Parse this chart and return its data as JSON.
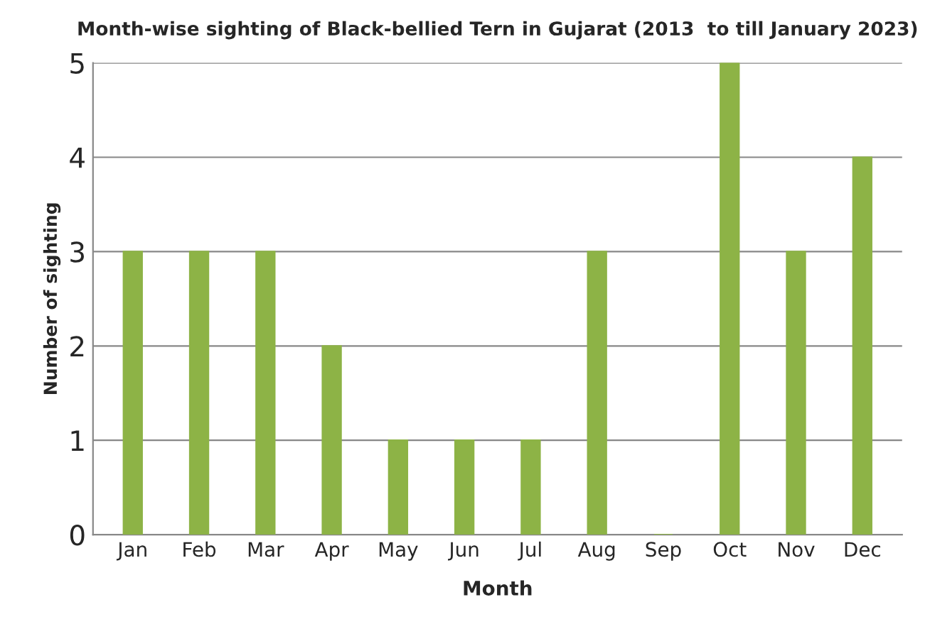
{
  "chart_data": {
    "type": "bar",
    "title": "Month-wise sighting of Black-bellied Tern in Gujarat (2013  to till January 2023)",
    "xlabel": "Month",
    "ylabel": "Number of sighting",
    "categories": [
      "Jan",
      "Feb",
      "Mar",
      "Apr",
      "May",
      "Jun",
      "Jul",
      "Aug",
      "Sep",
      "Oct",
      "Nov",
      "Dec"
    ],
    "values": [
      3,
      3,
      3,
      2,
      1,
      1,
      1,
      3,
      0,
      5,
      3,
      4
    ],
    "color": "#8db346",
    "ylim": [
      0,
      5
    ],
    "yticks": [
      0,
      1,
      2,
      3,
      4,
      5
    ],
    "grid": "y"
  }
}
